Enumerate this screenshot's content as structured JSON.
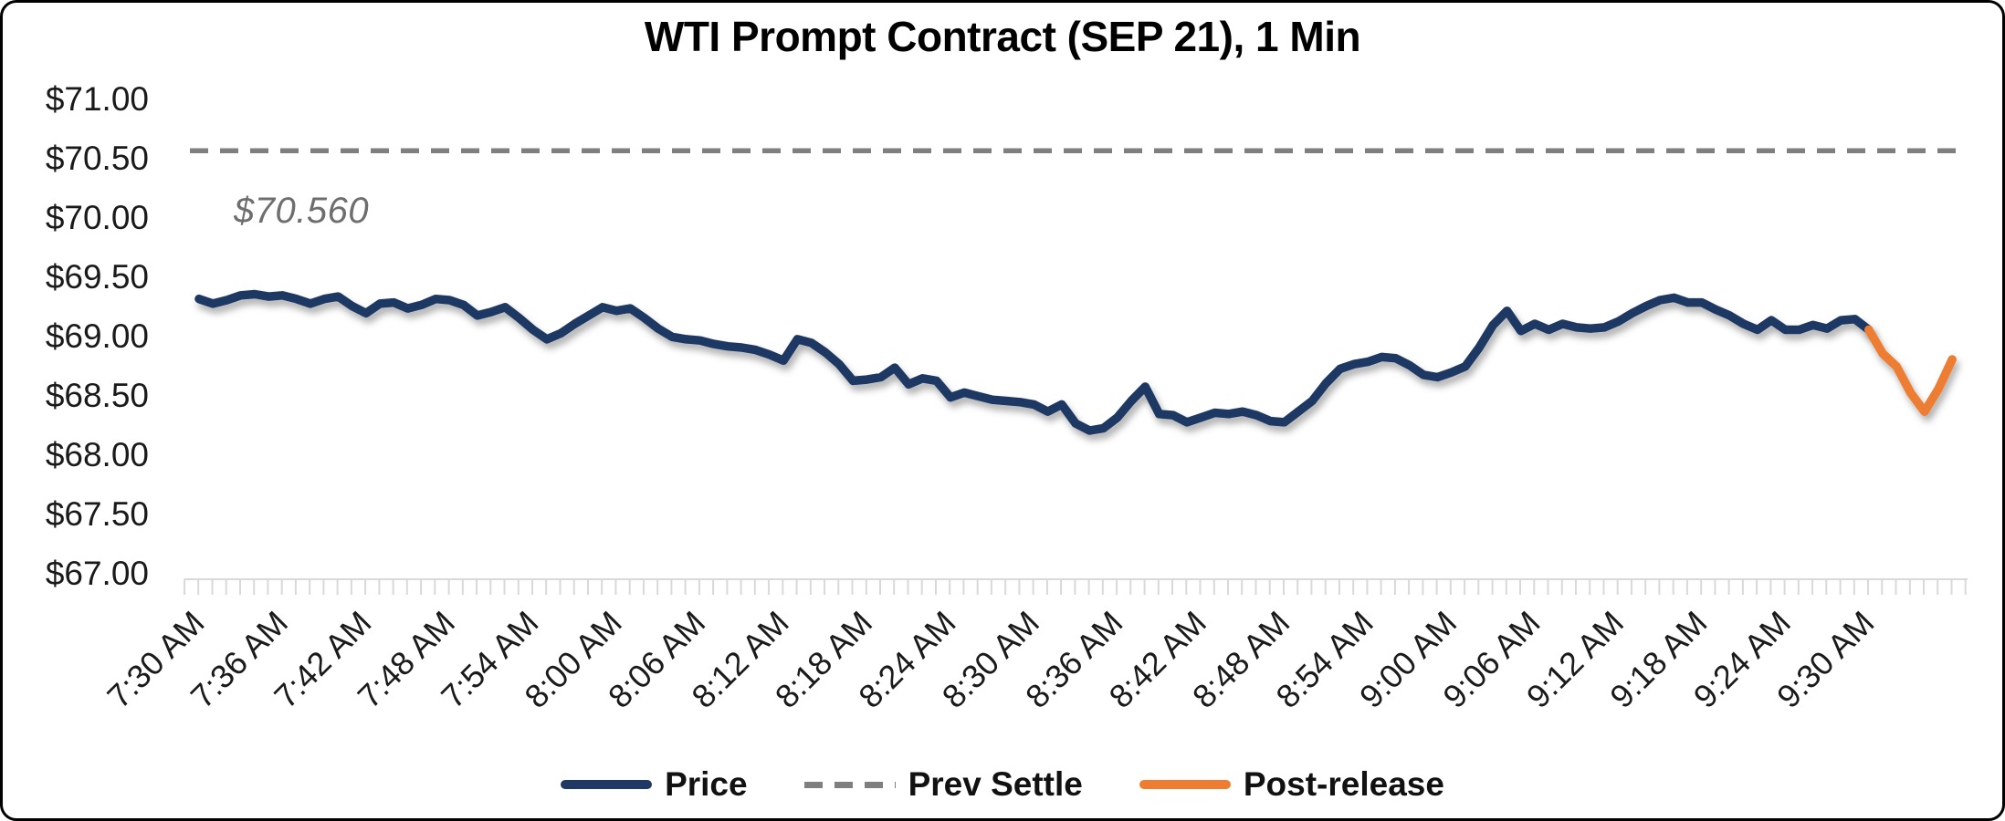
{
  "chart_data": {
    "type": "line",
    "title": "WTI Prompt Contract (SEP 21), 1 Min",
    "x_axis": {
      "start_time": "7:30 AM",
      "minutes_per_point": 1,
      "label_every_minutes": 6,
      "tick_labels": [
        "7:30 AM",
        "7:36 AM",
        "7:42 AM",
        "7:48 AM",
        "7:54 AM",
        "8:00 AM",
        "8:06 AM",
        "8:12 AM",
        "8:18 AM",
        "8:24 AM",
        "8:30 AM",
        "8:36 AM",
        "8:42 AM",
        "8:48 AM",
        "8:54 AM",
        "9:00 AM",
        "9:06 AM",
        "9:12 AM",
        "9:18 AM",
        "9:24 AM",
        "9:30 AM"
      ]
    },
    "y_axis": {
      "min": 67.0,
      "max": 71.0,
      "tick_step": 0.5,
      "tick_labels": [
        "$71.00",
        "$70.50",
        "$70.00",
        "$69.50",
        "$69.00",
        "$68.50",
        "$68.00",
        "$67.50",
        "$67.00"
      ]
    },
    "prev_settle": {
      "value": 70.56,
      "label": "$70.560",
      "color": "#7F7F7F"
    },
    "series": [
      {
        "name": "Price",
        "color": "#1F3864",
        "style": "solid",
        "start_minute": 0,
        "values": [
          69.31,
          69.27,
          69.3,
          69.34,
          69.35,
          69.33,
          69.34,
          69.31,
          69.27,
          69.31,
          69.33,
          69.25,
          69.19,
          69.27,
          69.28,
          69.23,
          69.26,
          69.31,
          69.3,
          69.26,
          69.17,
          69.2,
          69.24,
          69.15,
          69.05,
          68.97,
          69.02,
          69.1,
          69.17,
          69.24,
          69.21,
          69.23,
          69.15,
          69.06,
          68.99,
          68.97,
          68.96,
          68.93,
          68.91,
          68.9,
          68.88,
          68.84,
          68.79,
          68.97,
          68.94,
          68.86,
          68.76,
          68.62,
          68.63,
          68.65,
          68.73,
          68.59,
          68.64,
          68.62,
          68.48,
          68.52,
          68.49,
          68.46,
          68.45,
          68.44,
          68.42,
          68.36,
          68.42,
          68.26,
          68.2,
          68.22,
          68.31,
          68.45,
          68.57,
          68.34,
          68.33,
          68.27,
          68.31,
          68.35,
          68.34,
          68.36,
          68.33,
          68.28,
          68.27,
          68.36,
          68.45,
          68.6,
          68.72,
          68.76,
          68.78,
          68.82,
          68.81,
          68.75,
          68.67,
          68.65,
          68.69,
          68.74,
          68.9,
          69.09,
          69.21,
          69.04,
          69.1,
          69.05,
          69.1,
          69.07,
          69.06,
          69.07,
          69.12,
          69.19,
          69.25,
          69.3,
          69.32,
          69.28,
          69.28,
          69.22,
          69.17,
          69.1,
          69.05,
          69.13,
          69.05,
          69.05,
          69.09,
          69.06,
          69.13,
          69.14,
          69.05
        ]
      },
      {
        "name": "Prev Settle",
        "color": "#7F7F7F",
        "style": "dashed",
        "value": 70.56
      },
      {
        "name": "Post-release",
        "color": "#ED7D31",
        "style": "solid",
        "start_minute": 120,
        "values": [
          69.05,
          68.85,
          68.74,
          68.52,
          68.36,
          68.55,
          68.8
        ]
      }
    ],
    "legend": {
      "position": "bottom",
      "items": [
        {
          "label": "Price",
          "color": "#1F3864",
          "style": "solid"
        },
        {
          "label": "Prev Settle",
          "color": "#7F7F7F",
          "style": "dashed"
        },
        {
          "label": "Post-release",
          "color": "#ED7D31",
          "style": "solid"
        }
      ]
    },
    "axis_color": "#D9D9D9",
    "background": "#FFFFFF"
  }
}
